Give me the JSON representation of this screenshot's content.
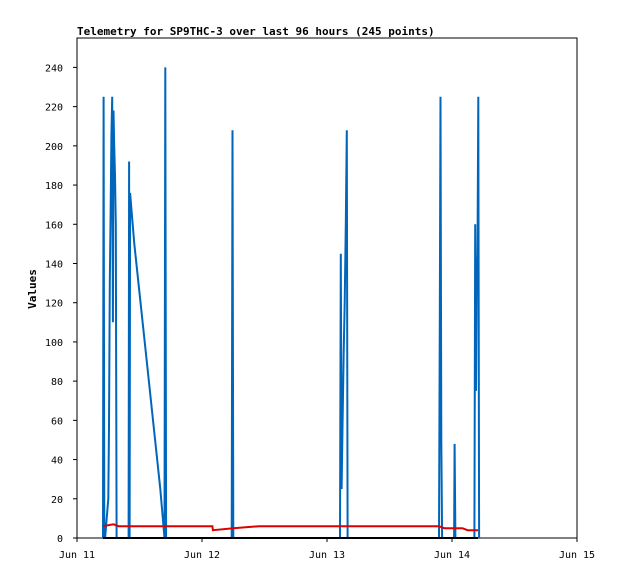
{
  "chart_data": {
    "type": "line",
    "title": "Telemetry for SP9THC-3 over last 96 hours (245 points)",
    "xlabel": "",
    "ylabel": "Values",
    "x_ticks": [
      "Jun 11",
      "Jun 12",
      "Jun 13",
      "Jun 14",
      "Jun 15"
    ],
    "xlim_hours": [
      0,
      96
    ],
    "y_ticks": [
      0,
      20,
      40,
      60,
      80,
      100,
      120,
      140,
      160,
      180,
      200,
      220,
      240
    ],
    "ylim": [
      0,
      255
    ],
    "grid": false,
    "legend": "none",
    "series": [
      {
        "color": "#0066bb",
        "points": [
          [
            5.0,
            0
          ],
          [
            5.1,
            225
          ],
          [
            5.25,
            0
          ],
          [
            5.4,
            0
          ],
          [
            6.0,
            20
          ],
          [
            6.15,
            57
          ],
          [
            6.3,
            130
          ],
          [
            6.45,
            165
          ],
          [
            6.6,
            205
          ],
          [
            6.75,
            225
          ],
          [
            6.9,
            110
          ],
          [
            7.0,
            218
          ],
          [
            7.15,
            200
          ],
          [
            7.3,
            185
          ],
          [
            7.45,
            160
          ],
          [
            7.6,
            0
          ],
          [
            8.4,
            0
          ],
          [
            8.6,
            0
          ],
          [
            9.9,
            0
          ],
          [
            10.0,
            192
          ],
          [
            10.1,
            0
          ],
          [
            10.2,
            176
          ],
          [
            11.0,
            150
          ],
          [
            12.0,
            125
          ],
          [
            13.0,
            100
          ],
          [
            14.0,
            75
          ],
          [
            15.0,
            50
          ],
          [
            16.0,
            25
          ],
          [
            16.8,
            0
          ],
          [
            16.95,
            240
          ],
          [
            17.1,
            0
          ],
          [
            29.7,
            0
          ],
          [
            29.85,
            208
          ],
          [
            30.0,
            0
          ],
          [
            50.5,
            0
          ],
          [
            50.65,
            145
          ],
          [
            50.8,
            25
          ],
          [
            51.0,
            60
          ],
          [
            51.2,
            95
          ],
          [
            51.4,
            120
          ],
          [
            51.6,
            160
          ],
          [
            51.8,
            208
          ],
          [
            51.95,
            0
          ],
          [
            69.5,
            0
          ],
          [
            69.65,
            112
          ],
          [
            69.8,
            225
          ],
          [
            69.95,
            50
          ],
          [
            70.1,
            0
          ],
          [
            72.4,
            0
          ],
          [
            72.5,
            48
          ],
          [
            72.65,
            0
          ],
          [
            76.3,
            0
          ],
          [
            76.45,
            160
          ],
          [
            76.6,
            75
          ],
          [
            76.75,
            130
          ],
          [
            76.9,
            145
          ],
          [
            77.05,
            225
          ],
          [
            77.2,
            0
          ]
        ]
      },
      {
        "color": "#dd0000",
        "points": [
          [
            5.0,
            6
          ],
          [
            7.0,
            7
          ],
          [
            8.0,
            6
          ],
          [
            10.0,
            6
          ],
          [
            12.0,
            6
          ],
          [
            16.0,
            6
          ],
          [
            20.0,
            6
          ],
          [
            26.0,
            6
          ],
          [
            26.1,
            4
          ],
          [
            30.0,
            5
          ],
          [
            35.0,
            6
          ],
          [
            45.0,
            6
          ],
          [
            50.0,
            6
          ],
          [
            55.0,
            6
          ],
          [
            60.0,
            6
          ],
          [
            65.0,
            6
          ],
          [
            69.5,
            6
          ],
          [
            70.5,
            5
          ],
          [
            72.0,
            5
          ],
          [
            74.0,
            5
          ],
          [
            75.0,
            4
          ],
          [
            77.0,
            4
          ]
        ]
      },
      {
        "color": "#000000",
        "points": [
          [
            5.0,
            0
          ],
          [
            77.0,
            0
          ]
        ]
      }
    ]
  }
}
